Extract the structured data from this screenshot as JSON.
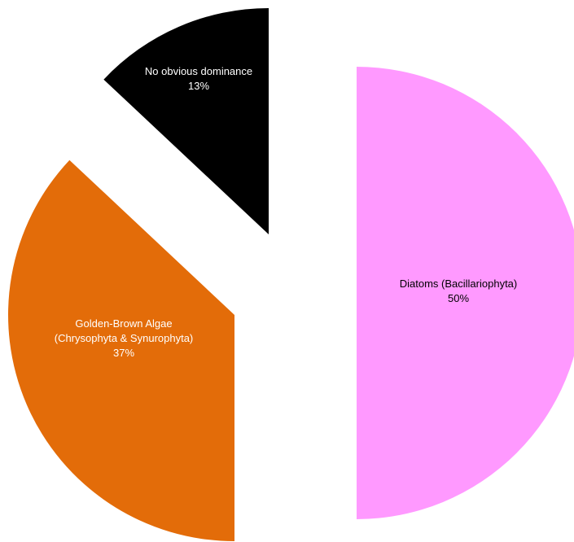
{
  "chart_data": {
    "type": "pie",
    "exploded": true,
    "slices": [
      {
        "label": "Diatoms (Bacillariophyta)",
        "value": 50,
        "value_text": "50%",
        "color": "#FF99FF",
        "label_color": "#000000"
      },
      {
        "label": "Golden-Brown Algae (Chrysophyta & Synurophyta)",
        "value": 37,
        "value_text": "37%",
        "color": "#E36C09",
        "label_color": "#FFFFFF"
      },
      {
        "label": "No obvious dominance",
        "value": 13,
        "value_text": "13%",
        "color": "#000000",
        "label_color": "#FFFFFF"
      }
    ]
  }
}
